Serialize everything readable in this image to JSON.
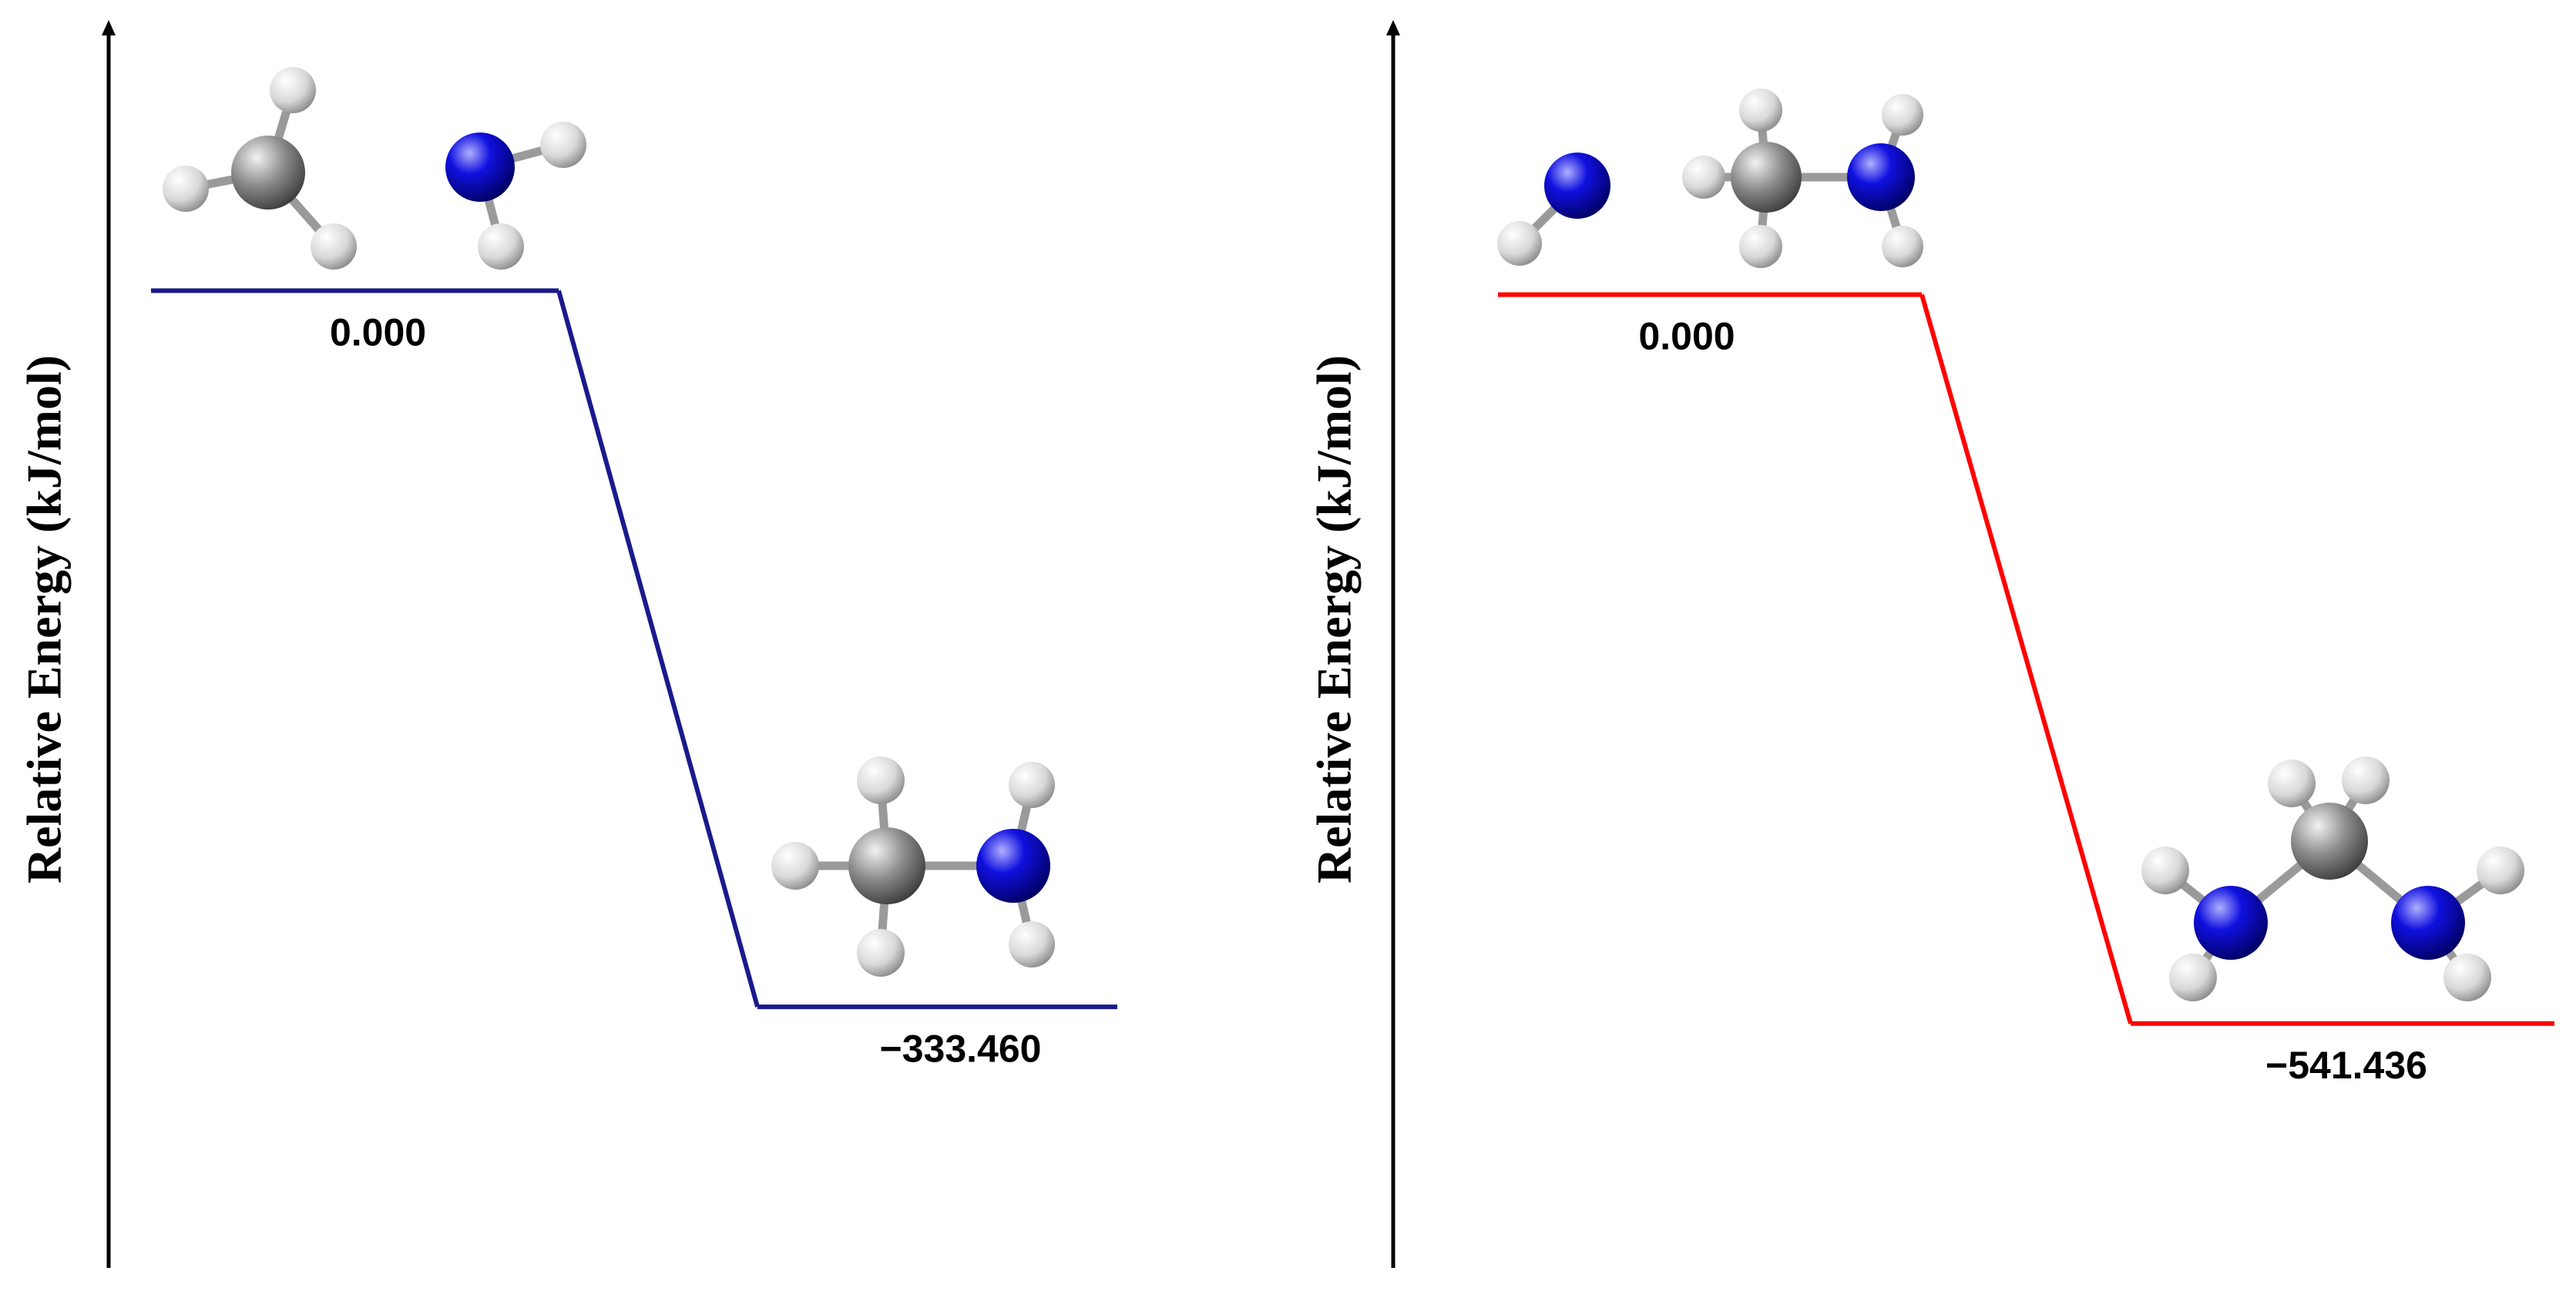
{
  "chart_data": [
    {
      "type": "energy",
      "y_label": "Relative Energy (kJ/mol)",
      "values": [
        0,
        -333.46
      ],
      "value_labels": [
        "0.000",
        "−333.460"
      ],
      "color": "#1a1a8c",
      "ylim": [
        -455,
        126
      ]
    },
    {
      "type": "energy",
      "y_label": "Relative Energy (kJ/mol)",
      "values": [
        0,
        -541.436
      ],
      "value_labels": [
        "0.000",
        "−541.436"
      ],
      "color": "#ff0000",
      "ylim": [
        -723,
        204
      ]
    }
  ]
}
